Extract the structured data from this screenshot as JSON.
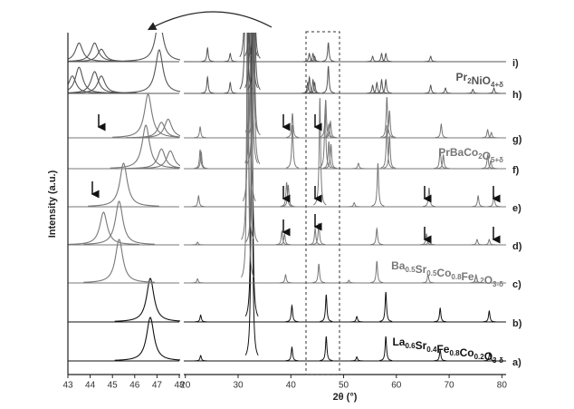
{
  "chart_data": {
    "type": "xrd-stack",
    "x_label": "2θ (°)",
    "y_label": "Intensity (a.u.)",
    "xlim": [
      19.7,
      80.8
    ],
    "xticks": [
      20,
      30,
      40,
      50,
      60,
      70,
      80
    ],
    "inset_xlim": [
      43,
      48
    ],
    "inset_xticks": [
      43,
      44,
      45,
      46,
      47,
      48
    ],
    "annotations": [
      "Pr2NiO4+δ",
      "PrBaCo2O5+δ",
      "Ba0.5Sr0.5Co0.8Fe0.2O3-δ",
      "La0.6Sr0.4Fe0.8Co0.2O3-δ"
    ],
    "series": [
      {
        "name": "a)",
        "color": "#111111",
        "x": [
          22.9,
          32.6,
          40.2,
          46.7,
          52.5,
          58.0,
          68.3,
          77.7
        ],
        "values": [
          2,
          120,
          5,
          9,
          1.5,
          9,
          4,
          3
        ]
      },
      {
        "name": "b)",
        "color": "#111111",
        "x": [
          22.9,
          32.6,
          40.2,
          46.7,
          52.5,
          58.0,
          68.3,
          77.6
        ],
        "values": [
          2.5,
          120,
          6,
          10,
          2,
          11,
          5,
          4
        ]
      },
      {
        "name": "c)",
        "color": "#777777",
        "x": [
          22.3,
          31.8,
          39.0,
          45.3,
          51.0,
          56.3,
          66.0,
          75.1
        ],
        "values": [
          1.5,
          120,
          3,
          7,
          1,
          8,
          3,
          3
        ]
      },
      {
        "name": "d)",
        "color": "#777777",
        "x": [
          22.3,
          31.8,
          32.6,
          38.3,
          38.8,
          44.6,
          45.3,
          56.3,
          65.7,
          66.2,
          75.3,
          77.6
        ],
        "values": [
          1,
          110,
          60,
          5,
          4,
          6,
          8,
          6,
          4,
          3,
          2,
          2
        ]
      },
      {
        "name": "e)",
        "color": "#777777",
        "x": [
          22.5,
          32.1,
          39.2,
          39.5,
          45.5,
          52.0,
          56.5,
          66.2,
          75.5,
          78.5
        ],
        "values": [
          4,
          120,
          9,
          8,
          40,
          1.5,
          16,
          7,
          4,
          4
        ]
      },
      {
        "name": "f)",
        "color": "#777777",
        "x": [
          22.8,
          23.0,
          32.5,
          32.9,
          40.3,
          46.5,
          47.2,
          47.6,
          52.8,
          58.2,
          58.7,
          68.3,
          68.9,
          77.3,
          77.9
        ],
        "values": [
          7,
          6,
          120,
          100,
          16,
          22,
          10,
          9,
          2,
          16,
          12,
          7,
          5,
          5,
          3
        ]
      },
      {
        "name": "g)",
        "color": "#777777",
        "x": [
          22.8,
          32.6,
          33.0,
          40.3,
          46.6,
          47.2,
          47.5,
          58.2,
          58.7,
          68.5,
          77.3,
          78.0
        ],
        "values": [
          4,
          120,
          60,
          9,
          14,
          5,
          6,
          15,
          10,
          5,
          3,
          2
        ]
      },
      {
        "name": "h)",
        "color": "#555555",
        "x": [
          24.2,
          28.5,
          31.5,
          32.5,
          33.0,
          43.2,
          43.5,
          44.2,
          44.5,
          47.1,
          55.5,
          56.3,
          57.2,
          58.0,
          66.5,
          69.3,
          74.5,
          78.5
        ],
        "values": [
          6,
          4,
          90,
          120,
          80,
          4,
          6,
          5,
          4,
          10,
          3,
          4,
          5,
          5,
          3,
          2,
          1.5,
          2
        ]
      },
      {
        "name": "i)",
        "color": "#555555",
        "x": [
          24.2,
          28.5,
          31.5,
          32.5,
          33.0,
          43.5,
          44.2,
          44.5,
          47.1,
          55.5,
          57.2,
          58.0,
          66.5
        ],
        "values": [
          5,
          3,
          100,
          120,
          70,
          3,
          3,
          2,
          7,
          2,
          3,
          3,
          2
        ]
      }
    ]
  }
}
